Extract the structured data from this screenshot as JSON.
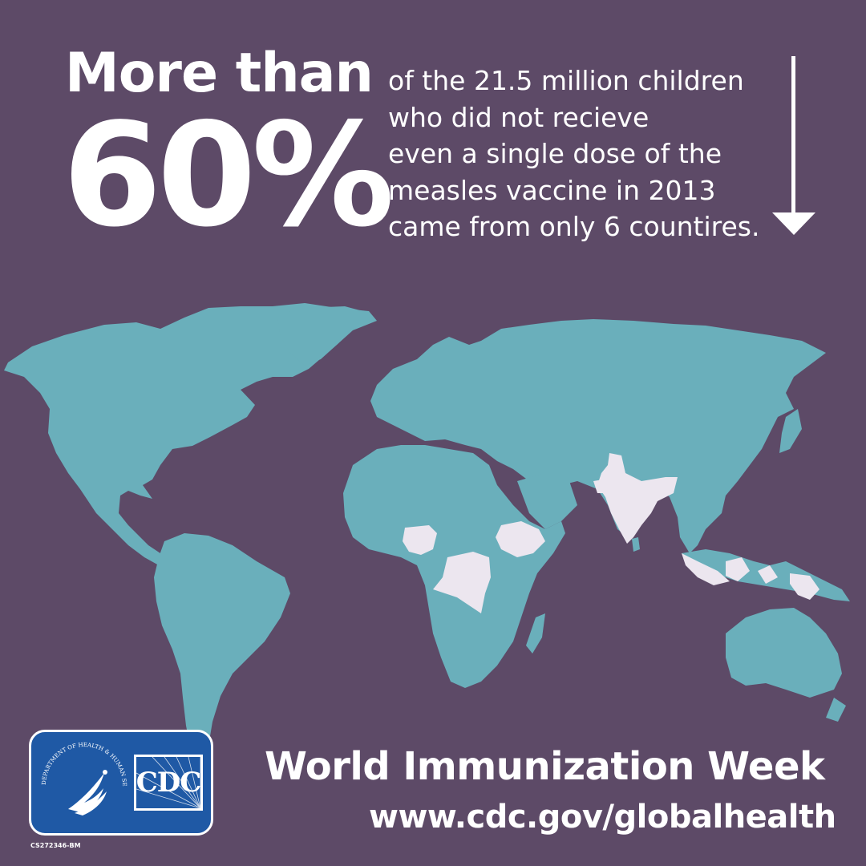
{
  "headline": {
    "more_than": "More than",
    "percent": "60%"
  },
  "stat_lines": [
    "of the 21.5 million children",
    "who did not recieve",
    "even a single dose of  the",
    "measles vaccine in 2013",
    "came from only 6 countires."
  ],
  "footer": {
    "title": "World Immunization Week",
    "url": "www.cdc.gov/globalhealth"
  },
  "logo": {
    "agency": "CDC",
    "seal_text": "DEPARTMENT OF HEALTH & HUMAN SERVICES USA"
  },
  "code": "CS272346-BM",
  "colors": {
    "background": "#5d4a67",
    "land": "#6aafbb",
    "highlighted_countries": "#ece6ef",
    "text": "#ffffff",
    "logo_blue": "#1f59a5"
  },
  "icons": [
    "down-arrow-icon",
    "hhs-eagle-icon"
  ]
}
